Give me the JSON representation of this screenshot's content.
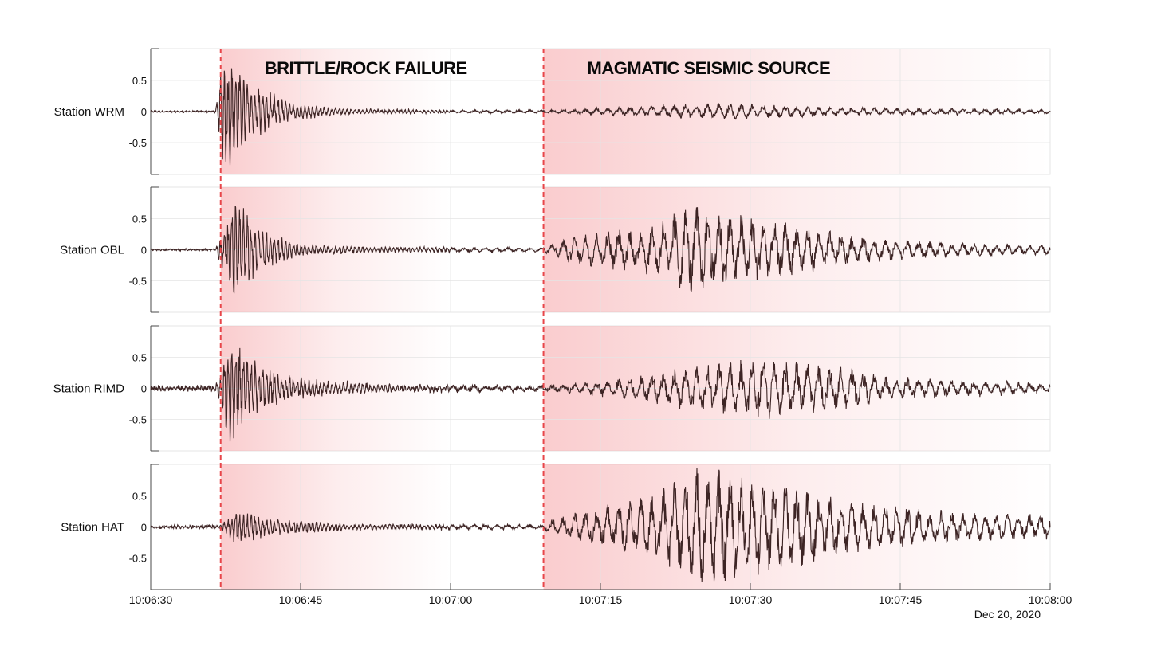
{
  "chart_data": {
    "type": "line",
    "subtype": "stacked seismograms",
    "x_axis": {
      "range": [
        "10:06:30",
        "10:08:00"
      ],
      "ticks": [
        "10:06:30",
        "10:06:45",
        "10:07:00",
        "10:07:15",
        "10:07:30",
        "10:07:45",
        "10:08:00"
      ],
      "date_label": "Dec 20, 2020"
    },
    "y_axis": {
      "range": [
        -1,
        1
      ],
      "ticks": [
        "0.5",
        "0",
        "-0.5"
      ]
    },
    "grid": true,
    "event_markers": [
      {
        "time": "10:06:37",
        "label": "BRITTLE/ROCK FAILURE",
        "color": "#e8464a"
      },
      {
        "time": "10:07:09.3",
        "label": "MAGMATIC SEISMIC SOURCE",
        "color": "#e8464a"
      }
    ],
    "shading": [
      {
        "start": "10:06:37",
        "end": "10:07:00",
        "color": "#f5a3a6"
      },
      {
        "start": "10:07:09.3",
        "end": "10:08:00",
        "color": "#f5a3a6"
      }
    ],
    "trace_color": "#3d2424",
    "series": [
      {
        "name": "Station WRM",
        "noise": 0.01,
        "envelope": [
          {
            "t": "10:06:36.5",
            "a": 0.01
          },
          {
            "t": "10:06:37.3",
            "a": 0.85
          },
          {
            "t": "10:06:40",
            "a": 0.45
          },
          {
            "t": "10:06:44",
            "a": 0.12
          },
          {
            "t": "10:06:50",
            "a": 0.04
          },
          {
            "t": "10:07:00",
            "a": 0.02
          },
          {
            "t": "10:07:10",
            "a": 0.02
          },
          {
            "t": "10:07:20",
            "a": 0.08
          },
          {
            "t": "10:07:28",
            "a": 0.12
          },
          {
            "t": "10:07:40",
            "a": 0.06
          },
          {
            "t": "10:08:00",
            "a": 0.03
          }
        ]
      },
      {
        "name": "Station OBL",
        "noise": 0.01,
        "envelope": [
          {
            "t": "10:06:36.5",
            "a": 0.02
          },
          {
            "t": "10:06:38.3",
            "a": 0.8
          },
          {
            "t": "10:06:41",
            "a": 0.3
          },
          {
            "t": "10:06:45",
            "a": 0.08
          },
          {
            "t": "10:06:52",
            "a": 0.04
          },
          {
            "t": "10:07:09",
            "a": 0.03
          },
          {
            "t": "10:07:12",
            "a": 0.2
          },
          {
            "t": "10:07:20",
            "a": 0.35
          },
          {
            "t": "10:07:24",
            "a": 0.65
          },
          {
            "t": "10:07:30",
            "a": 0.5
          },
          {
            "t": "10:07:40",
            "a": 0.2
          },
          {
            "t": "10:07:50",
            "a": 0.1
          },
          {
            "t": "10:08:00",
            "a": 0.07
          }
        ]
      },
      {
        "name": "Station RIMD",
        "noise": 0.03,
        "envelope": [
          {
            "t": "10:06:36.5",
            "a": 0.03
          },
          {
            "t": "10:06:38",
            "a": 0.8
          },
          {
            "t": "10:06:41",
            "a": 0.35
          },
          {
            "t": "10:06:46",
            "a": 0.12
          },
          {
            "t": "10:06:55",
            "a": 0.05
          },
          {
            "t": "10:07:10",
            "a": 0.03
          },
          {
            "t": "10:07:20",
            "a": 0.18
          },
          {
            "t": "10:07:25",
            "a": 0.35
          },
          {
            "t": "10:07:32",
            "a": 0.45
          },
          {
            "t": "10:07:45",
            "a": 0.15
          },
          {
            "t": "10:08:00",
            "a": 0.06
          }
        ]
      },
      {
        "name": "Station HAT",
        "noise": 0.02,
        "envelope": [
          {
            "t": "10:06:37",
            "a": 0.03
          },
          {
            "t": "10:06:38.5",
            "a": 0.25
          },
          {
            "t": "10:06:42",
            "a": 0.12
          },
          {
            "t": "10:06:50",
            "a": 0.04
          },
          {
            "t": "10:07:09",
            "a": 0.03
          },
          {
            "t": "10:07:12",
            "a": 0.2
          },
          {
            "t": "10:07:20",
            "a": 0.45
          },
          {
            "t": "10:07:25",
            "a": 0.85
          },
          {
            "t": "10:07:32",
            "a": 0.7
          },
          {
            "t": "10:07:40",
            "a": 0.4
          },
          {
            "t": "10:07:50",
            "a": 0.22
          },
          {
            "t": "10:08:00",
            "a": 0.18
          }
        ]
      }
    ]
  }
}
